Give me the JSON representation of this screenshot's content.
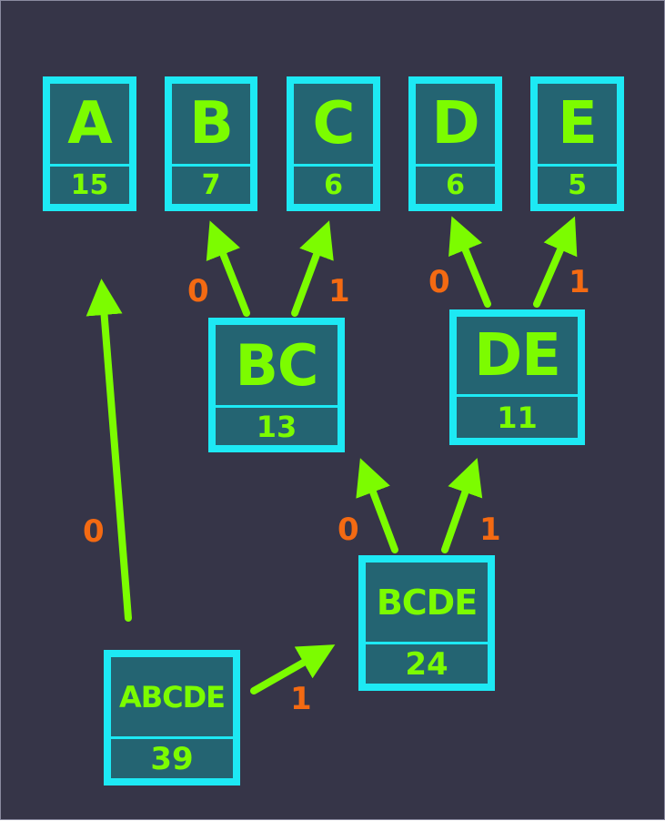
{
  "leaves": [
    {
      "symbol": "A",
      "weight": "15"
    },
    {
      "symbol": "B",
      "weight": "7"
    },
    {
      "symbol": "C",
      "weight": "6"
    },
    {
      "symbol": "D",
      "weight": "6"
    },
    {
      "symbol": "E",
      "weight": "5"
    }
  ],
  "internal": {
    "bc": {
      "symbol": "BC",
      "weight": "13"
    },
    "de": {
      "symbol": "DE",
      "weight": "11"
    },
    "bcde": {
      "symbol": "BCDE",
      "weight": "24"
    },
    "root": {
      "symbol": "ABCDE",
      "weight": "39"
    }
  },
  "edge_labels": {
    "bc_to_b": "0",
    "bc_to_c": "1",
    "de_to_d": "0",
    "de_to_e": "1",
    "bcde_to_bc": "0",
    "bcde_to_de": "1",
    "root_to_a": "0",
    "root_to_bcde": "1"
  },
  "colors": {
    "background": "#363548",
    "node_border": "#1de9f4",
    "node_fill": "#246472",
    "symbol_text": "#7cfc00",
    "arrow": "#7cfc00",
    "edge_label": "#f46a12"
  }
}
